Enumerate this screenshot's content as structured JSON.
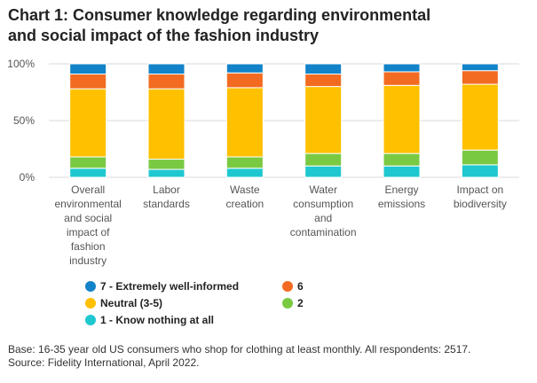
{
  "title_lines": [
    "Chart 1: Consumer knowledge regarding environmental",
    "and social impact of the fashion industry"
  ],
  "chart_data": {
    "type": "bar",
    "stacked": true,
    "categories": [
      [
        "Overall",
        "environmental",
        "and social",
        "impact of",
        "fashion",
        "industry"
      ],
      [
        "Labor",
        "standards"
      ],
      [
        "Waste",
        "creation"
      ],
      [
        "Water",
        "consumption",
        "and",
        "contamination"
      ],
      [
        "Energy",
        "emissions"
      ],
      [
        "Impact on",
        "biodiversity"
      ]
    ],
    "series": [
      {
        "name": "1 - Know nothing at all",
        "color": "#1fc8d0",
        "values": [
          8,
          7,
          8,
          10,
          10,
          11
        ]
      },
      {
        "name": "2",
        "color": "#7ac943",
        "values": [
          10,
          9,
          10,
          11,
          11,
          13
        ]
      },
      {
        "name": "Neutral (3-5)",
        "color": "#ffc000",
        "values": [
          60,
          62,
          61,
          59,
          60,
          58
        ]
      },
      {
        "name": "6",
        "color": "#f26b21",
        "values": [
          13,
          13,
          13,
          11,
          12,
          12
        ]
      },
      {
        "name": "7 - Extremely well-informed",
        "color": "#1283c9",
        "values": [
          9,
          9,
          8,
          9,
          7,
          6
        ]
      }
    ],
    "ylim": [
      0,
      100
    ],
    "y_ticks": [
      0,
      50,
      100
    ],
    "y_tick_labels": [
      "0%",
      "50%",
      "100%"
    ],
    "grid": true
  },
  "legend": [
    {
      "label": "7 - Extremely well-informed",
      "color": "#1283c9"
    },
    {
      "label": "6",
      "color": "#f26b21"
    },
    {
      "label": "Neutral (3-5)",
      "color": "#ffc000"
    },
    {
      "label": "2",
      "color": "#7ac943"
    },
    {
      "label": "1 - Know nothing at all",
      "color": "#1fc8d0"
    }
  ],
  "footnote": {
    "base": "Base: 16-35 year old US consumers who shop for clothing at least monthly. All respondents: 2517.",
    "source": "Source: Fidelity International, April 2022."
  }
}
